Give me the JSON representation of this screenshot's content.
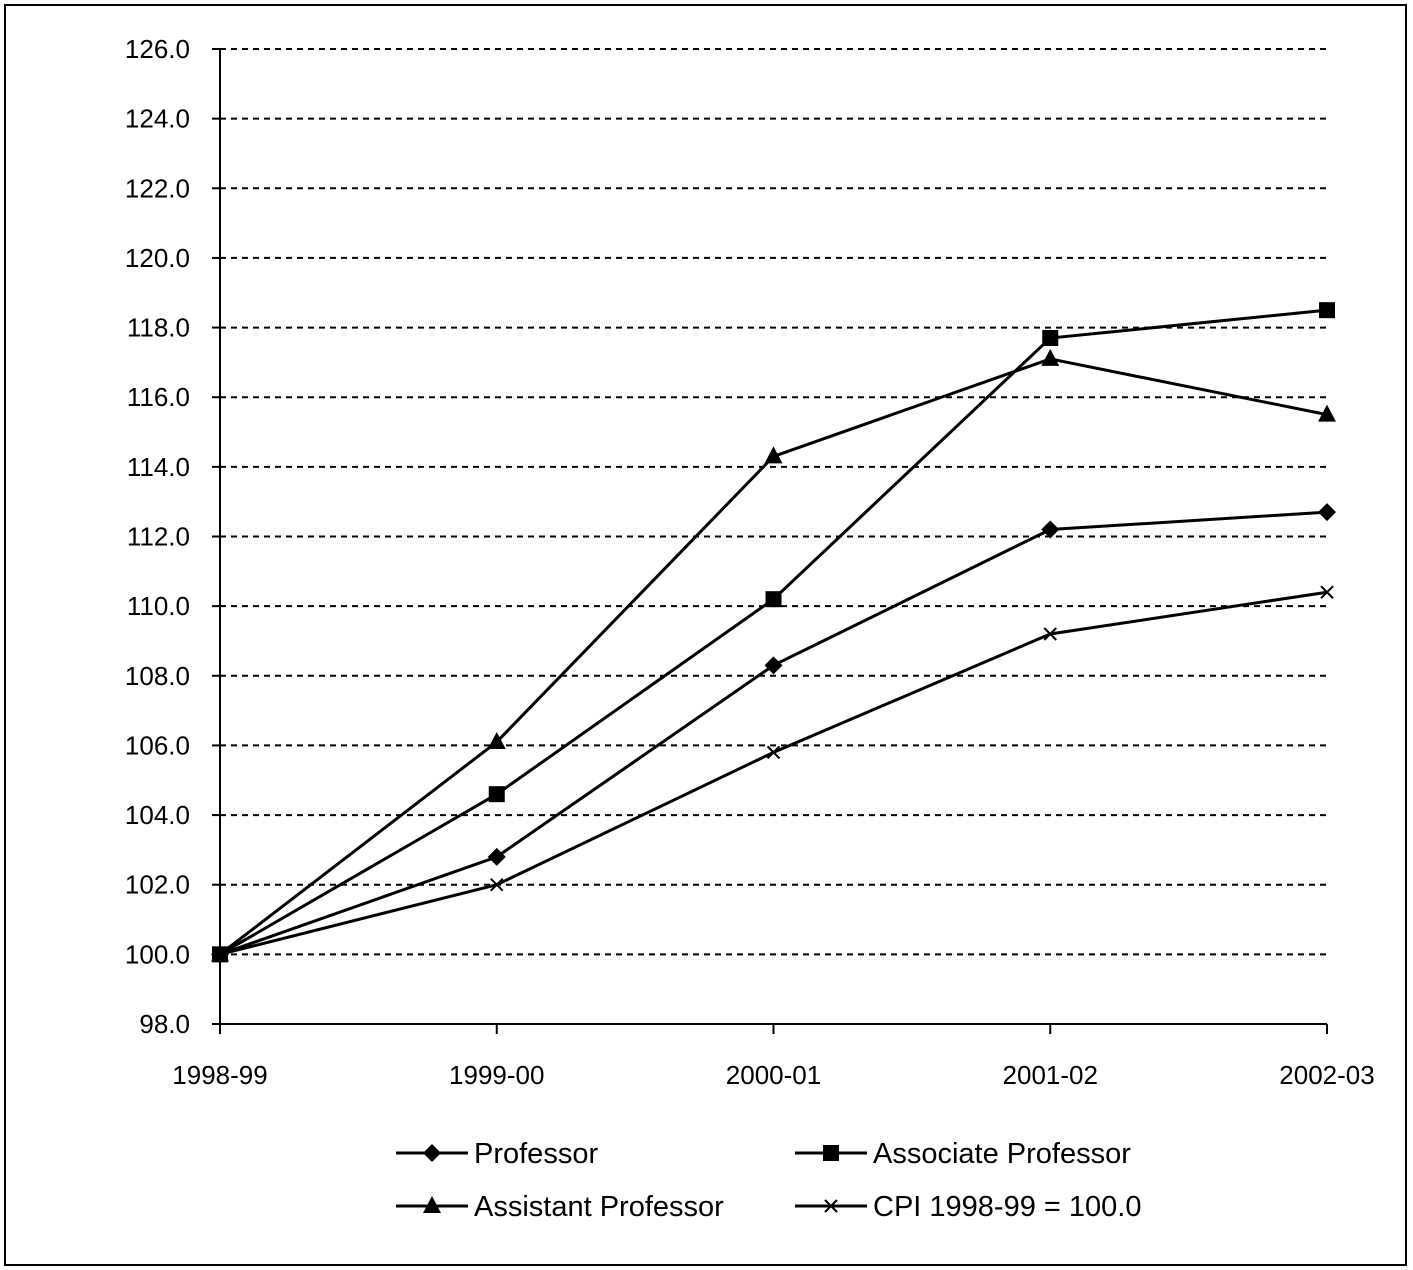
{
  "chart_data": {
    "type": "line",
    "title": "",
    "xlabel": "",
    "ylabel": "",
    "categories": [
      "1998-99",
      "1999-00",
      "2000-01",
      "2001-02",
      "2002-03"
    ],
    "ylim": [
      98.0,
      126.0
    ],
    "yticks": [
      98.0,
      100.0,
      102.0,
      104.0,
      106.0,
      108.0,
      110.0,
      112.0,
      114.0,
      116.0,
      118.0,
      120.0,
      122.0,
      124.0,
      126.0
    ],
    "grid": true,
    "legend_position": "bottom",
    "series": [
      {
        "name": "Professor",
        "marker": "diamond",
        "color": "#000000",
        "values": [
          100.0,
          102.8,
          108.3,
          112.2,
          112.7
        ]
      },
      {
        "name": "Associate Professor",
        "marker": "square",
        "color": "#000000",
        "values": [
          100.0,
          104.6,
          110.2,
          117.7,
          118.5
        ]
      },
      {
        "name": "Assistant Professor",
        "marker": "triangle",
        "color": "#000000",
        "values": [
          100.0,
          106.1,
          114.3,
          117.1,
          115.5
        ]
      },
      {
        "name": "CPI 1998-99 = 100.0",
        "marker": "x",
        "color": "#000000",
        "values": [
          100.0,
          102.0,
          105.8,
          109.2,
          110.4
        ]
      }
    ]
  }
}
